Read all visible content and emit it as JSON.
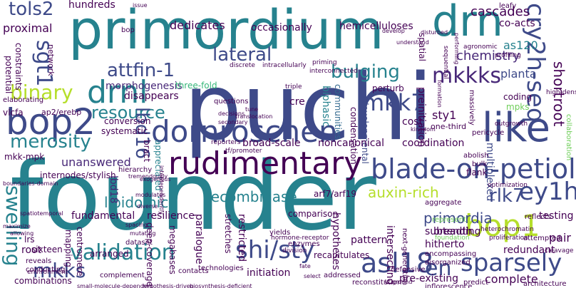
{
  "cloud": {
    "palette": [
      "#440154",
      "#482878",
      "#3e4a89",
      "#31688e",
      "#26828e",
      "#1f9e89",
      "#35b779",
      "#6ece58",
      "#b5de2b",
      "#fde725"
    ],
    "words": [
      {
        "id": "puchi",
        "text": "puchi"
      },
      {
        "id": "founder",
        "text": "founder"
      },
      {
        "id": "primordium",
        "text": "primordium"
      },
      {
        "id": "like",
        "text": "like"
      },
      {
        "id": "dornroschen",
        "text": "dornroschen"
      },
      {
        "id": "bop2",
        "text": "bop2"
      },
      {
        "id": "drnl",
        "text": "drnl"
      },
      {
        "id": "drn",
        "text": "drn"
      },
      {
        "id": "blade-on-petiole1",
        "text": "blade-on-petiole1"
      },
      {
        "id": "rudimentary",
        "text": "rudimentary"
      },
      {
        "id": "bop1",
        "text": "bop1"
      },
      {
        "id": "cry2h-seq",
        "text": "cry2h-seq"
      },
      {
        "id": "ey1h",
        "text": "ey1h"
      },
      {
        "id": "asl18",
        "text": "asl18"
      },
      {
        "id": "validation",
        "text": "validation"
      },
      {
        "id": "shi-sty",
        "text": "shi/sty"
      },
      {
        "id": "en",
        "text": "en"
      },
      {
        "id": "sparsely",
        "text": "sparsely"
      },
      {
        "id": "attfin-1",
        "text": "attfin-1"
      },
      {
        "id": "lateral",
        "text": "lateral"
      },
      {
        "id": "bulging",
        "text": "bulging"
      },
      {
        "id": "mkk7",
        "text": "mkk7"
      },
      {
        "id": "mkkks",
        "text": "mkkks"
      },
      {
        "id": "merosity",
        "text": "merosity"
      },
      {
        "id": "binary",
        "text": "binary"
      },
      {
        "id": "resource",
        "text": "resource"
      },
      {
        "id": "sgt1",
        "text": "sgt1"
      },
      {
        "id": "tols2",
        "text": "tols2"
      },
      {
        "id": "lbd16",
        "text": "lbd16"
      },
      {
        "id": "rlk7",
        "text": "rlk7"
      },
      {
        "id": "swelling",
        "text": "swelling"
      },
      {
        "id": "mkks",
        "text": "mkks"
      },
      {
        "id": "lipidomic",
        "text": "lipidomic"
      },
      {
        "id": "recombinase",
        "text": "recombinase"
      },
      {
        "id": "auxin-rich",
        "text": "auxin-rich"
      },
      {
        "id": "primordia",
        "text": "primordia"
      },
      {
        "id": "shortroot",
        "text": "shortroot"
      },
      {
        "id": "chemistry",
        "text": "chemistry"
      },
      {
        "id": "planta",
        "text": "planta"
      },
      {
        "id": "cascades",
        "text": "cascades"
      },
      {
        "id": "co-acts",
        "text": "co-acts"
      },
      {
        "id": "as120",
        "text": "as120"
      },
      {
        "id": "hemicelluloses",
        "text": "hemicelluloses"
      },
      {
        "id": "dedicates",
        "text": "dedicates"
      },
      {
        "id": "occasionally",
        "text": "occasionally"
      },
      {
        "id": "hundreds",
        "text": "hundreds"
      },
      {
        "id": "proximal",
        "text": "proximal"
      },
      {
        "id": "morphogenesis",
        "text": "morphogenesis"
      },
      {
        "id": "three-fold",
        "text": "three-fold"
      },
      {
        "id": "disappears",
        "text": "disappears"
      },
      {
        "id": "multiplexed",
        "text": "multiplexed"
      },
      {
        "id": "preinitiation",
        "text": "preinitiation"
      },
      {
        "id": "sty1",
        "text": "sty1"
      },
      {
        "id": "mpks",
        "text": "mpks"
      },
      {
        "id": "coding",
        "text": "coding"
      },
      {
        "id": "perturb",
        "text": "perturb"
      },
      {
        "id": "cre",
        "text": "cre"
      },
      {
        "id": "biphasic",
        "text": "biphasic"
      },
      {
        "id": "communities",
        "text": "communities"
      },
      {
        "id": "cost",
        "text": "cost"
      },
      {
        "id": "one-third",
        "text": "one-third"
      },
      {
        "id": "condensation",
        "text": "condensation"
      },
      {
        "id": "developmental",
        "text": "developmental"
      },
      {
        "id": "conversion",
        "text": "conversion"
      },
      {
        "id": "systematic",
        "text": "systematic"
      },
      {
        "id": "mkk-mpk",
        "text": "mkk-mpk"
      },
      {
        "id": "unanswered",
        "text": "unanswered"
      },
      {
        "id": "internodes-stylish",
        "text": "internodes/stylish"
      },
      {
        "id": "ap2-erebp",
        "text": "ap2/erebp"
      },
      {
        "id": "vlcfa",
        "text": "vlcfa"
      },
      {
        "id": "network",
        "text": "network"
      },
      {
        "id": "constraints",
        "text": "constraints"
      },
      {
        "id": "potential",
        "text": "potential"
      },
      {
        "id": "fundamental",
        "text": "fundamental"
      },
      {
        "id": "resilience",
        "text": "resilience"
      },
      {
        "id": "broad-scale",
        "text": "broad-scale"
      },
      {
        "id": "noncanonical",
        "text": "noncanonical"
      },
      {
        "id": "coordination",
        "text": "coordination"
      },
      {
        "id": "arf7-arf19",
        "text": "arf7/arf19"
      },
      {
        "id": "comparison",
        "text": "comparison"
      },
      {
        "id": "bract",
        "text": "bract"
      },
      {
        "id": "appreciated",
        "text": "appreciated"
      },
      {
        "id": "flank",
        "text": "flank"
      },
      {
        "id": "testing",
        "text": "testing"
      },
      {
        "id": "pair",
        "text": "pair"
      },
      {
        "id": "breadth",
        "text": "breadth"
      },
      {
        "id": "redundant",
        "text": "redundant"
      },
      {
        "id": "hitherto",
        "text": "hitherto"
      },
      {
        "id": "subtending",
        "text": "subtending"
      },
      {
        "id": "intersecting",
        "text": "intersecting"
      },
      {
        "id": "pattern",
        "text": "pattern"
      },
      {
        "id": "recapitulates",
        "text": "recapitulates"
      },
      {
        "id": "initiation",
        "text": "initiation"
      },
      {
        "id": "complete",
        "text": "complete"
      },
      {
        "id": "pre-existing",
        "text": "pre-existing"
      },
      {
        "id": "inflorescence",
        "text": "inflorescence"
      },
      {
        "id": "reconstitution",
        "text": "reconstitution"
      },
      {
        "id": "hypotheses",
        "text": "hypotheses"
      },
      {
        "id": "restricted",
        "text": "restricted"
      },
      {
        "id": "stretches",
        "text": "stretches"
      },
      {
        "id": "paralogue",
        "text": "paralogue"
      },
      {
        "id": "deep-coverage",
        "text": "deep-coverage"
      },
      {
        "id": "megabases",
        "text": "megabases"
      },
      {
        "id": "centromere",
        "text": "centromere"
      },
      {
        "id": "mapping",
        "text": "mapping"
      },
      {
        "id": "arranged",
        "text": "arranged"
      },
      {
        "id": "root",
        "text": "root"
      },
      {
        "id": "lrs",
        "text": "lrs"
      },
      {
        "id": "sixteen",
        "text": "sixteen"
      },
      {
        "id": "combinations",
        "text": "combinations"
      },
      {
        "id": "spatial",
        "text": "spatial"
      },
      {
        "id": "massively",
        "text": "massively"
      },
      {
        "id": "pericycle",
        "text": "pericycle"
      },
      {
        "id": "abolish",
        "text": "abolish"
      },
      {
        "id": "bulk",
        "text": "bulk"
      },
      {
        "id": "collaboration",
        "text": "collaboration"
      },
      {
        "id": "aggregate",
        "text": "aggregate"
      },
      {
        "id": "encompassing",
        "text": "encompassing"
      },
      {
        "id": "disorganized",
        "text": "disorganized"
      },
      {
        "id": "next-generation",
        "text": "next-generation"
      },
      {
        "id": "represent",
        "text": "represent"
      },
      {
        "id": "bop",
        "text": "bop"
      },
      {
        "id": "questions",
        "text": "questions"
      },
      {
        "id": "elaborating",
        "text": "elaborating"
      },
      {
        "id": "enzymes",
        "text": "enzymes"
      },
      {
        "id": "reflects",
        "text": "reflects"
      },
      {
        "id": "attempted",
        "text": "attempted"
      },
      {
        "id": "architecture",
        "text": "architecture"
      },
      {
        "id": "technologies",
        "text": "technologies"
      },
      {
        "id": "addressed",
        "text": "addressed"
      },
      {
        "id": "defensive",
        "text": "defensive"
      },
      {
        "id": "predict",
        "text": "predict"
      },
      {
        "id": "contacts",
        "text": "contacts"
      },
      {
        "id": "yields",
        "text": "yields"
      },
      {
        "id": "dataset",
        "text": "dataset"
      },
      {
        "id": "conducting",
        "text": "conducting"
      },
      {
        "id": "reveals",
        "text": "reveals"
      },
      {
        "id": "environment",
        "text": "environment"
      },
      {
        "id": "complement",
        "text": "complement"
      },
      {
        "id": "hierarchy",
        "text": "hierarchy"
      },
      {
        "id": "division",
        "text": "division"
      },
      {
        "id": "hormone-receptor",
        "text": "hormone-receptor"
      },
      {
        "id": "reporters",
        "text": "reporters"
      },
      {
        "id": "tfpromoter",
        "text": "tf/promoter"
      },
      {
        "id": "cleavage",
        "text": "cleavage"
      },
      {
        "id": "proliferation",
        "text": "proliferation"
      },
      {
        "id": "foundation",
        "text": "foundation"
      },
      {
        "id": "heterochromatin",
        "text": "heterochromatin"
      },
      {
        "id": "optimization",
        "text": "optimization"
      },
      {
        "id": "outgrowth",
        "text": "outgrowth"
      },
      {
        "id": "leafy",
        "text": "leafy"
      },
      {
        "id": "agronomic",
        "text": "agronomic"
      },
      {
        "id": "profiling",
        "text": "profiling"
      },
      {
        "id": "high-density",
        "text": "high-density"
      },
      {
        "id": "triple",
        "text": "triple"
      },
      {
        "id": "discrete",
        "text": "discrete"
      },
      {
        "id": "intracellularly",
        "text": "intracellularly"
      },
      {
        "id": "priming",
        "text": "priming"
      },
      {
        "id": "interconnected",
        "text": "interconnected"
      },
      {
        "id": "understand",
        "text": "understand"
      },
      {
        "id": "develop",
        "text": "develop"
      },
      {
        "id": "disturbed",
        "text": "disturbed"
      },
      {
        "id": "sequential",
        "text": "sequential"
      },
      {
        "id": "issue",
        "text": "issue"
      },
      {
        "id": "spatiotemporal",
        "text": "spatiotemporal"
      },
      {
        "id": "boundaries-domain",
        "text": "boundaries-domain"
      },
      {
        "id": "small-molecule-dependent",
        "text": "small-molecule-dependent"
      },
      {
        "id": "hypothesis-driven",
        "text": "hypothesis-driven"
      },
      {
        "id": "biosynthesis-deficient",
        "text": "biosynthesis-deficient"
      },
      {
        "id": "kingdom",
        "text": "kingdom"
      },
      {
        "id": "secondary",
        "text": "secondary"
      },
      {
        "id": "decisions",
        "text": "decisions"
      },
      {
        "id": "tune",
        "text": "tune"
      },
      {
        "id": "translocation",
        "text": "translocation"
      },
      {
        "id": "interdependently",
        "text": "interdependently"
      },
      {
        "id": "spacing",
        "text": "spacing"
      },
      {
        "id": "mutating",
        "text": "mutating"
      },
      {
        "id": "diverse",
        "text": "diverse"
      },
      {
        "id": "exogenous",
        "text": "exogenous"
      },
      {
        "id": "tremendously",
        "text": "tremendously"
      },
      {
        "id": "maximize",
        "text": "maximize"
      },
      {
        "id": "allowing",
        "text": "allowing"
      },
      {
        "id": "modulates",
        "text": "modulates"
      },
      {
        "id": "fate",
        "text": "fate"
      },
      {
        "id": "select",
        "text": "select"
      },
      {
        "id": "ground",
        "text": "ground"
      },
      {
        "id": "performing",
        "text": "performing"
      },
      {
        "id": "formation",
        "text": "formation"
      },
      {
        "id": "lbd18",
        "text": "lbd18"
      }
    ]
  }
}
